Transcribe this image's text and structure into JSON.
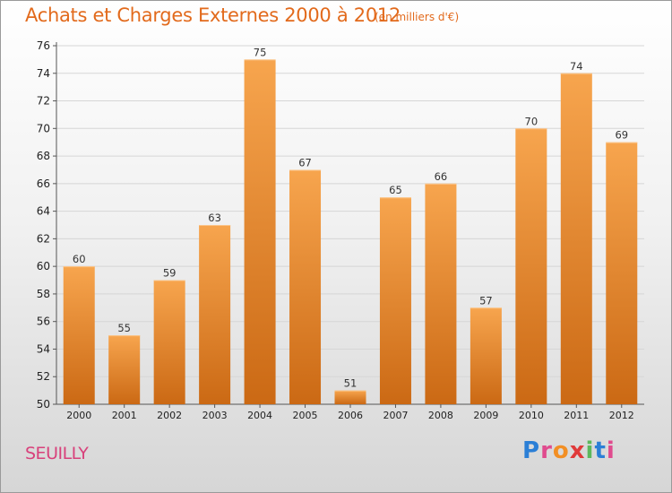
{
  "title": "Achats et Charges Externes 2000 à 2012",
  "unit_note": "(en milliers d'€)",
  "city": "SEUILLY",
  "logo": {
    "text": "Proxiti",
    "letters": [
      {
        "ch": "P",
        "color": "#2b7fd6"
      },
      {
        "ch": "r",
        "color": "#e04b8e"
      },
      {
        "ch": "o",
        "color": "#f28f24"
      },
      {
        "ch": "x",
        "color": "#e03a3a"
      },
      {
        "ch": "i",
        "color": "#5cb85c"
      },
      {
        "ch": "t",
        "color": "#2b7fd6"
      },
      {
        "ch": "i",
        "color": "#e04b8e"
      }
    ]
  },
  "colors": {
    "bar_top": "#f7a54e",
    "bar_bottom": "#cb6914",
    "title": "#e26a1c",
    "city": "#d8417b"
  },
  "chart_data": {
    "type": "bar",
    "title": "Achats et Charges Externes 2000 à 2012",
    "subtitle": "(en milliers d'€)",
    "xlabel": "",
    "ylabel": "",
    "categories": [
      "2000",
      "2001",
      "2002",
      "2003",
      "2004",
      "2005",
      "2006",
      "2007",
      "2008",
      "2009",
      "2010",
      "2011",
      "2012"
    ],
    "values": [
      60,
      55,
      59,
      63,
      75,
      67,
      51,
      65,
      66,
      57,
      70,
      74,
      69
    ],
    "ylim": [
      50,
      76
    ],
    "yticks": [
      50,
      52,
      54,
      56,
      58,
      60,
      62,
      64,
      66,
      68,
      70,
      72,
      74,
      76
    ],
    "grid": true,
    "data_labels": true
  }
}
